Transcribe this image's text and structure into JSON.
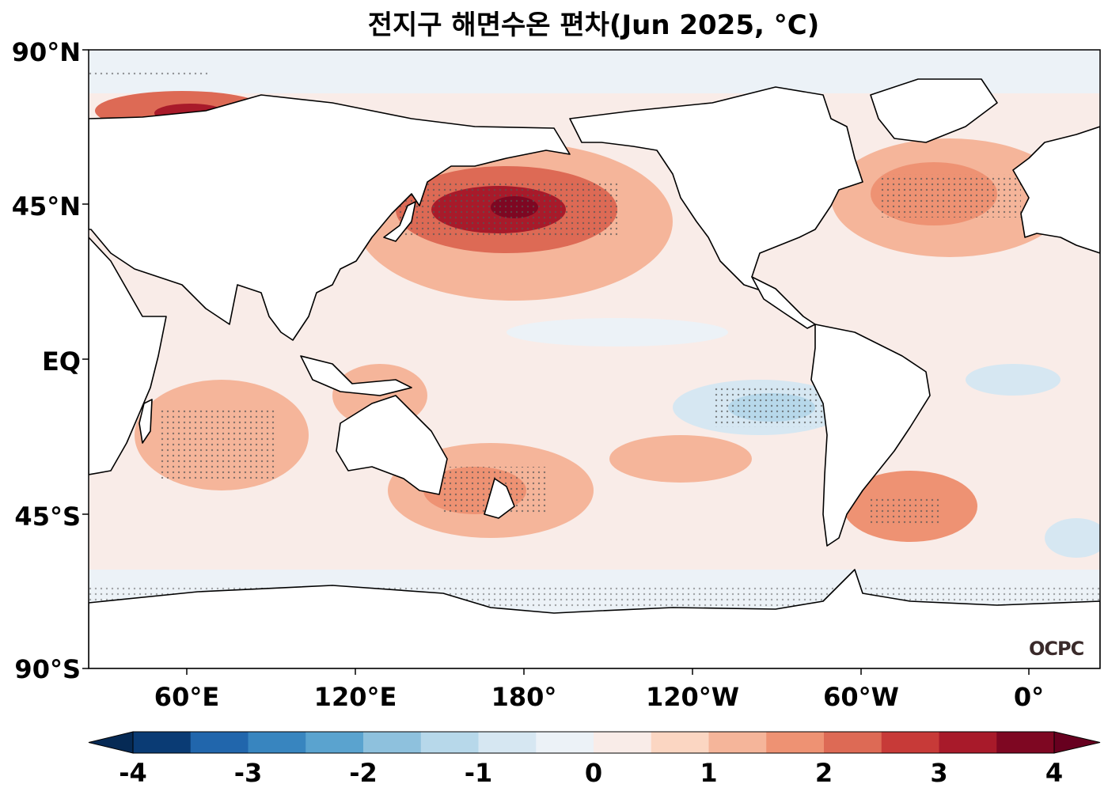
{
  "title": "전지구 해면수온 편차(Jun 2025, °C)",
  "lat_labels": [
    "90°N",
    "45°N",
    "EQ",
    "45°S",
    "90°S"
  ],
  "lon_labels": [
    "60°E",
    "120°E",
    "180°",
    "120°W",
    "60°W",
    "0°"
  ],
  "colorbar": {
    "ticks": [
      "-4",
      "-3",
      "-2",
      "-1",
      "0",
      "1",
      "2",
      "3",
      "4"
    ],
    "range": [
      -4,
      4
    ],
    "step": 0.5,
    "colors": [
      "#0a3b74",
      "#2166ac",
      "#3885bf",
      "#5aa3cf",
      "#8ec1dd",
      "#b7d8ea",
      "#d6e7f2",
      "#ecf2f7",
      "#f9ece8",
      "#fbd6c2",
      "#f5b59a",
      "#ee9273",
      "#dd6a55",
      "#c73a38",
      "#a81a2a",
      "#7e0722"
    ]
  },
  "credit": "OCPC"
}
